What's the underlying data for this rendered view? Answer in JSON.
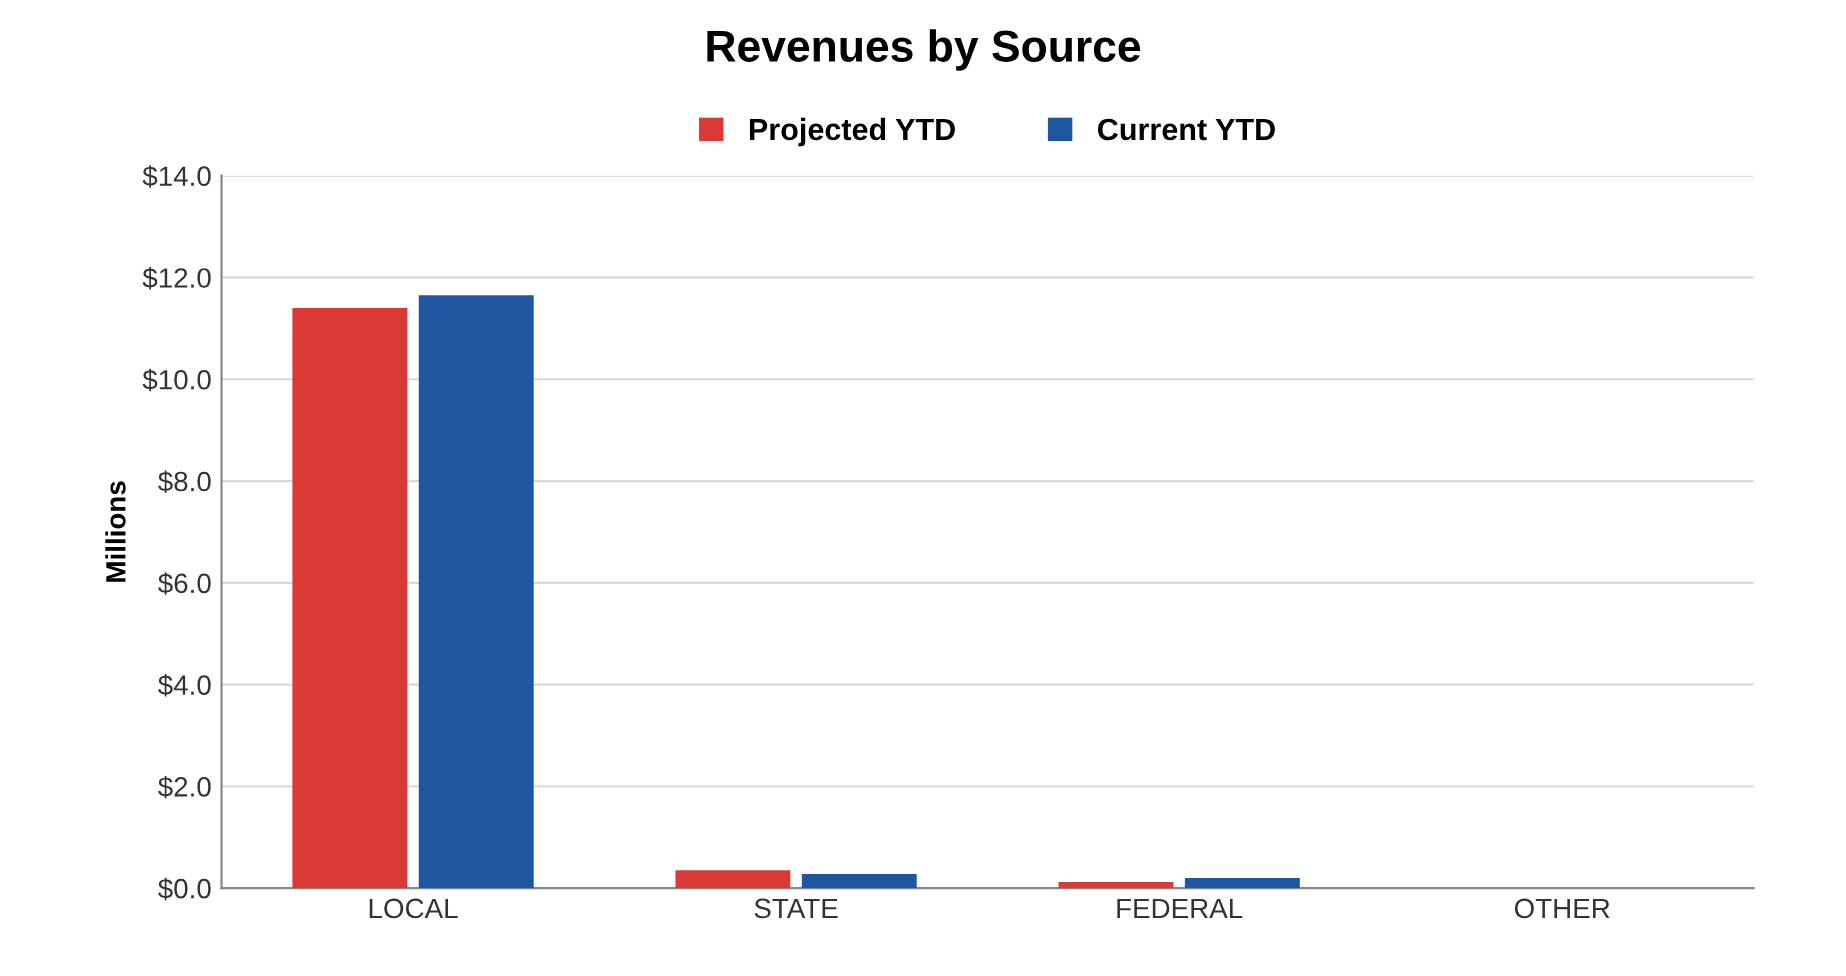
{
  "chart_data": {
    "type": "bar",
    "title": "Revenues by Source",
    "ylabel": "Millions",
    "categories": [
      "LOCAL",
      "STATE",
      "FEDERAL",
      "OTHER"
    ],
    "series": [
      {
        "name": "Projected YTD",
        "color": "#d93a36",
        "values": [
          11.4,
          0.35,
          0.12,
          0
        ]
      },
      {
        "name": "Current YTD",
        "color": "#1f56a0",
        "values": [
          11.65,
          0.28,
          0.2,
          0
        ]
      }
    ],
    "ylim": [
      0,
      14
    ],
    "yticks": [
      {
        "value": 0,
        "label": "$0.0"
      },
      {
        "value": 2,
        "label": "$2.0"
      },
      {
        "value": 4,
        "label": "$4.0"
      },
      {
        "value": 6,
        "label": "$6.0"
      },
      {
        "value": 8,
        "label": "$8.0"
      },
      {
        "value": 10,
        "label": "$10.0"
      },
      {
        "value": 12,
        "label": "$12.0"
      },
      {
        "value": 14,
        "label": "$14.0"
      }
    ],
    "grid": "y",
    "legend": "top"
  }
}
